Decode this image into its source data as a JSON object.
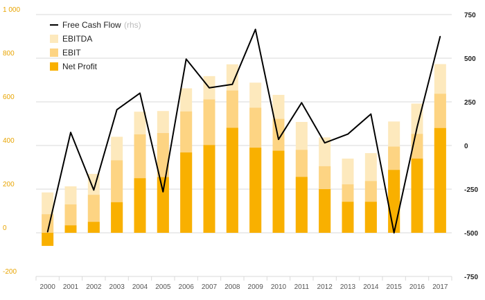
{
  "chart_data": {
    "type": "bar",
    "categories": [
      "2000",
      "2001",
      "2002",
      "2003",
      "2004",
      "2005",
      "2006",
      "2007",
      "2008",
      "2009",
      "2010",
      "2011",
      "2012",
      "2013",
      "2014",
      "2015",
      "2016",
      "2017"
    ],
    "series": [
      {
        "name": "EBITDA",
        "kind": "bar",
        "axis": "left",
        "color": "#fde9bd",
        "values": [
          185,
          213,
          270,
          440,
          555,
          558,
          662,
          718,
          772,
          688,
          632,
          508,
          437,
          340,
          365,
          510,
          592,
          773
        ]
      },
      {
        "name": "EBIT",
        "kind": "bar",
        "axis": "left",
        "color": "#fdd483",
        "values": [
          85,
          130,
          174,
          332,
          451,
          457,
          556,
          611,
          652,
          573,
          522,
          380,
          305,
          222,
          237,
          395,
          453,
          637
        ]
      },
      {
        "name": "Net Profit",
        "kind": "bar",
        "axis": "left",
        "color": "#f9b000",
        "values": [
          -60,
          34,
          50,
          140,
          250,
          255,
          368,
          402,
          481,
          390,
          376,
          256,
          200,
          142,
          142,
          288,
          340,
          480
        ]
      },
      {
        "name": "Free Cash Flow",
        "note": "(rhs)",
        "kind": "line",
        "axis": "right",
        "color": "#000000",
        "values": [
          -495,
          75,
          -255,
          205,
          300,
          -265,
          495,
          330,
          350,
          665,
          35,
          245,
          15,
          65,
          180,
          -500,
          105,
          625
        ]
      }
    ],
    "left_axis": {
      "min": -200,
      "max": 1000,
      "ticks": [
        "-200",
        "0",
        "200",
        "400",
        "600",
        "800",
        "1 000"
      ],
      "tick_values": [
        -200,
        0,
        200,
        400,
        600,
        800,
        1000
      ]
    },
    "right_axis": {
      "min": -750,
      "max": 750,
      "ticks": [
        "-750",
        "-500",
        "-250",
        "0",
        "250",
        "500",
        "750"
      ],
      "tick_values": [
        -750,
        -500,
        -250,
        0,
        250,
        500,
        750
      ]
    },
    "grid": true,
    "legend_position": "top-left",
    "colors": {
      "left_axis": "#e8a400",
      "right_axis": "#222222",
      "grid": "#d9d9d9"
    }
  }
}
